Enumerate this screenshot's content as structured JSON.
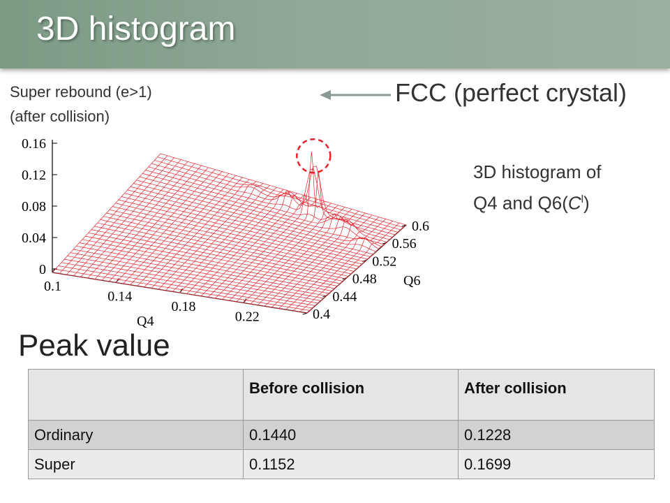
{
  "header": {
    "title": "3D histogram"
  },
  "caption": {
    "line1": "Super rebound (e>1)",
    "line2": "(after collision)"
  },
  "annotation": {
    "fcc_label": "FCC (perfect crystal)",
    "circle_color": "#e8202a",
    "arrow_color": "#8a9a90"
  },
  "hist_caption": {
    "line1": "3D histogram of",
    "line2_prefix": "Q4 and Q6(",
    "line2_italic": "C",
    "line2_sup": "l",
    "line2_suffix": ")"
  },
  "peak": {
    "label": "Peak value"
  },
  "chart_data": {
    "type": "surface",
    "title": "",
    "xlabel": "Q4",
    "ylabel": "Q6",
    "zlabel": "",
    "x_range": [
      0.1,
      0.26
    ],
    "y_range": [
      0.4,
      0.6
    ],
    "z_range": [
      0,
      0.16
    ],
    "x_ticks": [
      "0.1",
      "0.14",
      "0.18",
      "0.22"
    ],
    "y_ticks": [
      "0.4",
      "0.44",
      "0.48",
      "0.52",
      "0.56",
      "0.6"
    ],
    "z_ticks": [
      "0",
      "0.04",
      "0.08",
      "0.12",
      "0.16"
    ],
    "surface_color": "#e8202a",
    "peaks": [
      {
        "q4": 0.208,
        "q6": 0.575,
        "height": 0.17,
        "label": "FCC peak"
      },
      {
        "q4": 0.19,
        "q6": 0.58,
        "height": 0.035
      },
      {
        "q4": 0.225,
        "q6": 0.565,
        "height": 0.03
      },
      {
        "q4": 0.235,
        "q6": 0.56,
        "height": 0.03
      },
      {
        "q4": 0.25,
        "q6": 0.545,
        "height": 0.02
      },
      {
        "q4": 0.165,
        "q6": 0.585,
        "height": 0.012
      }
    ]
  },
  "table": {
    "headers": [
      "",
      "Before collision",
      "After collision"
    ],
    "rows": [
      [
        "Ordinary",
        "0.1440",
        "0.1228"
      ],
      [
        "Super",
        "0.1152",
        "0.1699"
      ]
    ]
  }
}
